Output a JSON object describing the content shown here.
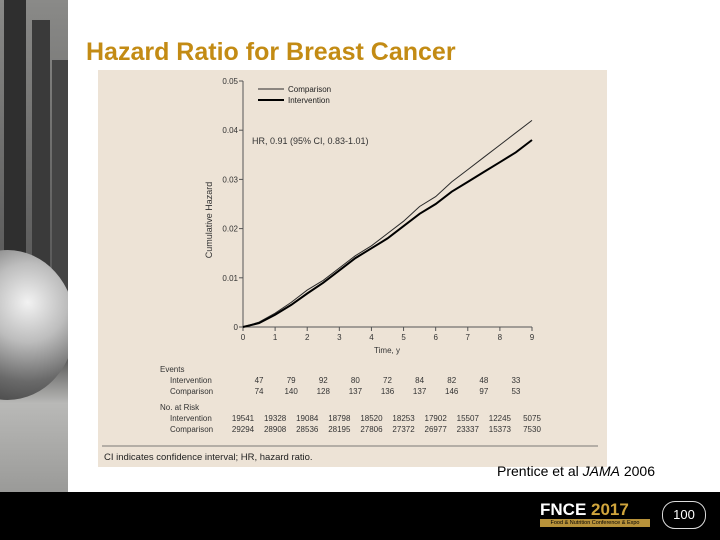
{
  "slide": {
    "title": "Hazard Ratio for Breast Cancer",
    "citation_prefix": "Prentice et al ",
    "citation_journal": "JAMA",
    "citation_year": " 2006"
  },
  "footer": {
    "logo_text_a": "FNCE",
    "logo_text_b": "2017",
    "logo_subtitle": "Food & Nutrition Conference & Expo",
    "logo_centennial": "100"
  },
  "chart_data": {
    "type": "line",
    "title": "",
    "xlabel": "Time, y",
    "ylabel": "Cumulative Hazard",
    "xlim": [
      0,
      9
    ],
    "ylim": [
      0,
      0.05
    ],
    "x_ticks": [
      "0",
      "1",
      "2",
      "3",
      "4",
      "5",
      "6",
      "7",
      "8",
      "9"
    ],
    "y_ticks": [
      "0",
      "0.01",
      "0.02",
      "0.03",
      "0.04",
      "0.05"
    ],
    "annotation": "HR, 0.91 (95% CI, 0.83-1.01)",
    "legend_position": "top-left",
    "series": [
      {
        "name": "Comparison",
        "color": "#2a2a2a",
        "x": [
          0,
          0.5,
          1,
          1.5,
          2,
          2.5,
          3,
          3.5,
          4,
          4.5,
          5,
          5.5,
          6,
          6.5,
          7,
          7.5,
          8,
          8.5,
          9
        ],
        "y": [
          0,
          0.001,
          0.0028,
          0.005,
          0.0075,
          0.0095,
          0.012,
          0.0145,
          0.0165,
          0.019,
          0.0215,
          0.0245,
          0.0265,
          0.0295,
          0.032,
          0.0345,
          0.037,
          0.0395,
          0.042
        ]
      },
      {
        "name": "Intervention",
        "color": "#000000",
        "x": [
          0,
          0.5,
          1,
          1.5,
          2,
          2.5,
          3,
          3.5,
          4,
          4.5,
          5,
          5.5,
          6,
          6.5,
          7,
          7.5,
          8,
          8.5,
          9
        ],
        "y": [
          0,
          0.0008,
          0.0025,
          0.0045,
          0.0068,
          0.009,
          0.0115,
          0.014,
          0.016,
          0.018,
          0.0205,
          0.023,
          0.025,
          0.0275,
          0.0295,
          0.0315,
          0.0335,
          0.0355,
          0.038
        ]
      }
    ],
    "events_table": {
      "label": "Events",
      "rows": [
        {
          "name": "Intervention",
          "values": [
            "47",
            "79",
            "92",
            "80",
            "72",
            "84",
            "82",
            "48",
            "33"
          ]
        },
        {
          "name": "Comparison",
          "values": [
            "74",
            "140",
            "128",
            "137",
            "136",
            "137",
            "146",
            "97",
            "53"
          ]
        }
      ]
    },
    "risk_table": {
      "label": "No. at Risk",
      "rows": [
        {
          "name": "Intervention",
          "values": [
            "19541",
            "19328",
            "19084",
            "18798",
            "18520",
            "18253",
            "17902",
            "15507",
            "12245",
            "5075"
          ]
        },
        {
          "name": "Comparison",
          "values": [
            "29294",
            "28908",
            "28536",
            "28195",
            "27806",
            "27372",
            "26977",
            "23337",
            "15373",
            "7530"
          ]
        }
      ]
    },
    "footnote": "CI indicates confidence interval; HR, hazard ratio."
  }
}
